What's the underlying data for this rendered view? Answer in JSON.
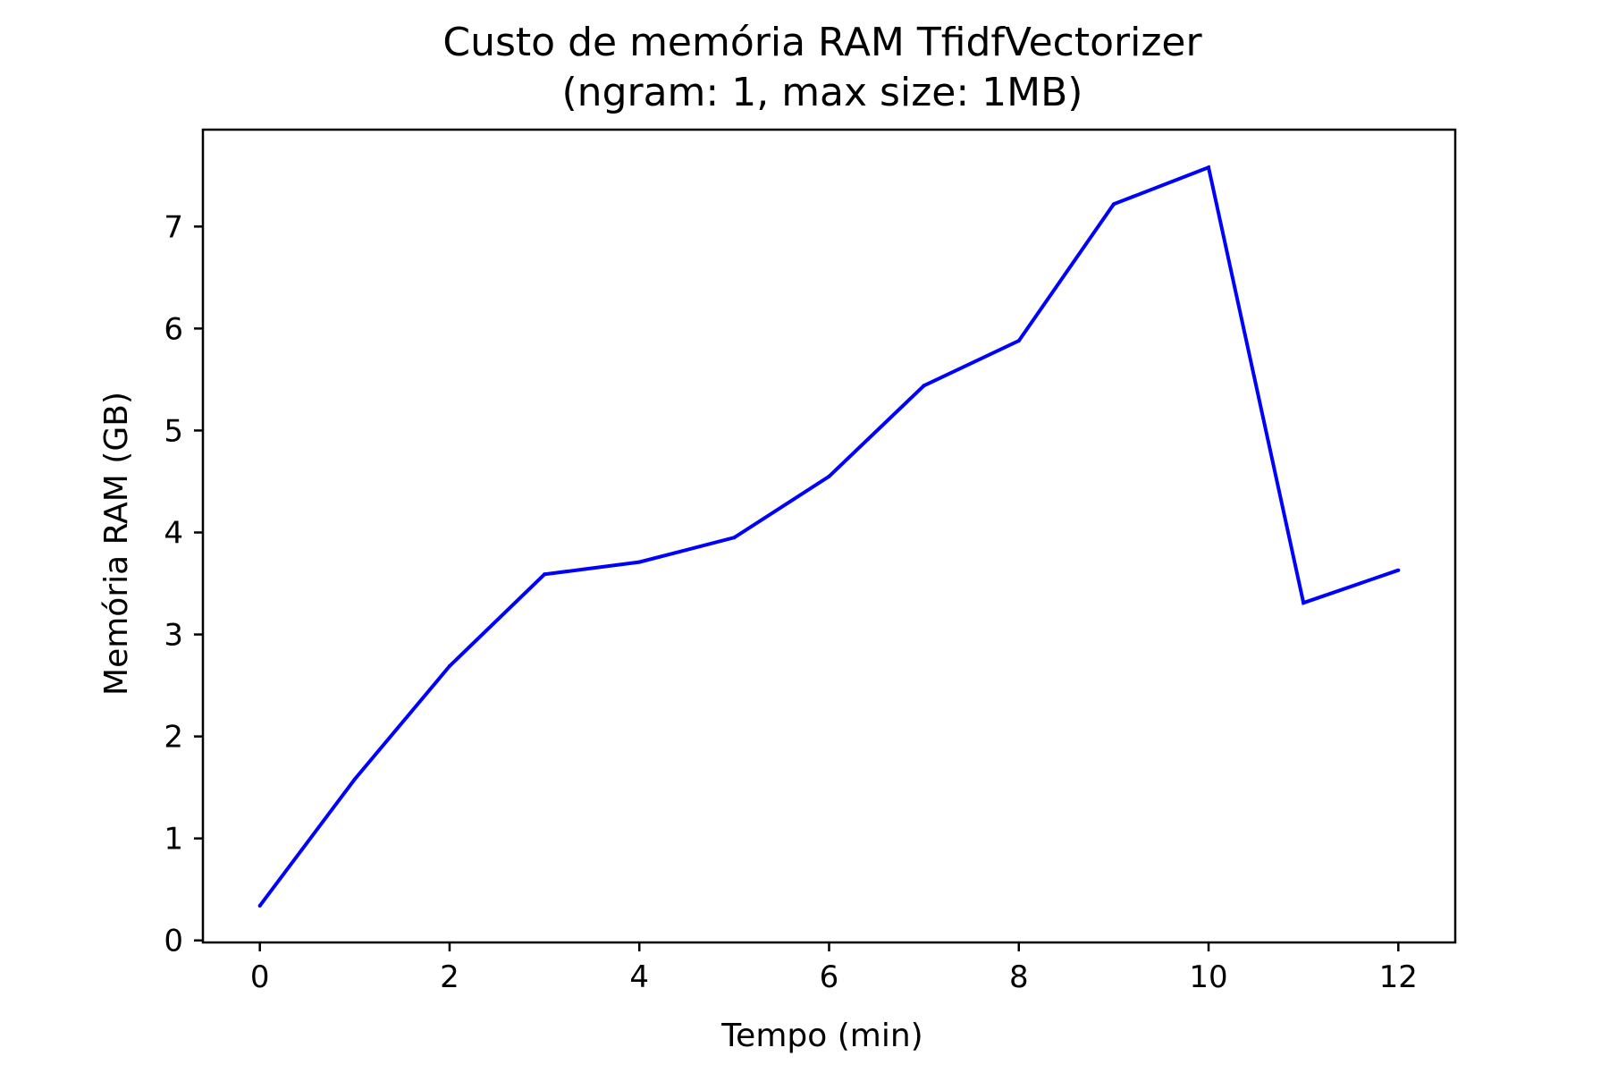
{
  "chart_data": {
    "type": "line",
    "title": "Custo de memória RAM TfidfVectorizer",
    "subtitle": "(ngram: 1, max size: 1MB)",
    "xlabel": "Tempo (min)",
    "ylabel": "Memória RAM (GB)",
    "xlim": [
      -0.6,
      12.6
    ],
    "ylim": [
      -0.02,
      7.95
    ],
    "xticks": [
      0,
      2,
      4,
      6,
      8,
      10,
      12
    ],
    "yticks": [
      0,
      1,
      2,
      3,
      4,
      5,
      6,
      7
    ],
    "grid": false,
    "series": [
      {
        "color": "#0000ff",
        "x": [
          0,
          1,
          2,
          3,
          4,
          5,
          6,
          7,
          8,
          9,
          10,
          11,
          12
        ],
        "y": [
          0.34,
          1.58,
          2.69,
          3.59,
          3.71,
          3.95,
          4.55,
          5.44,
          5.88,
          7.22,
          7.58,
          3.31,
          3.63
        ]
      }
    ]
  }
}
